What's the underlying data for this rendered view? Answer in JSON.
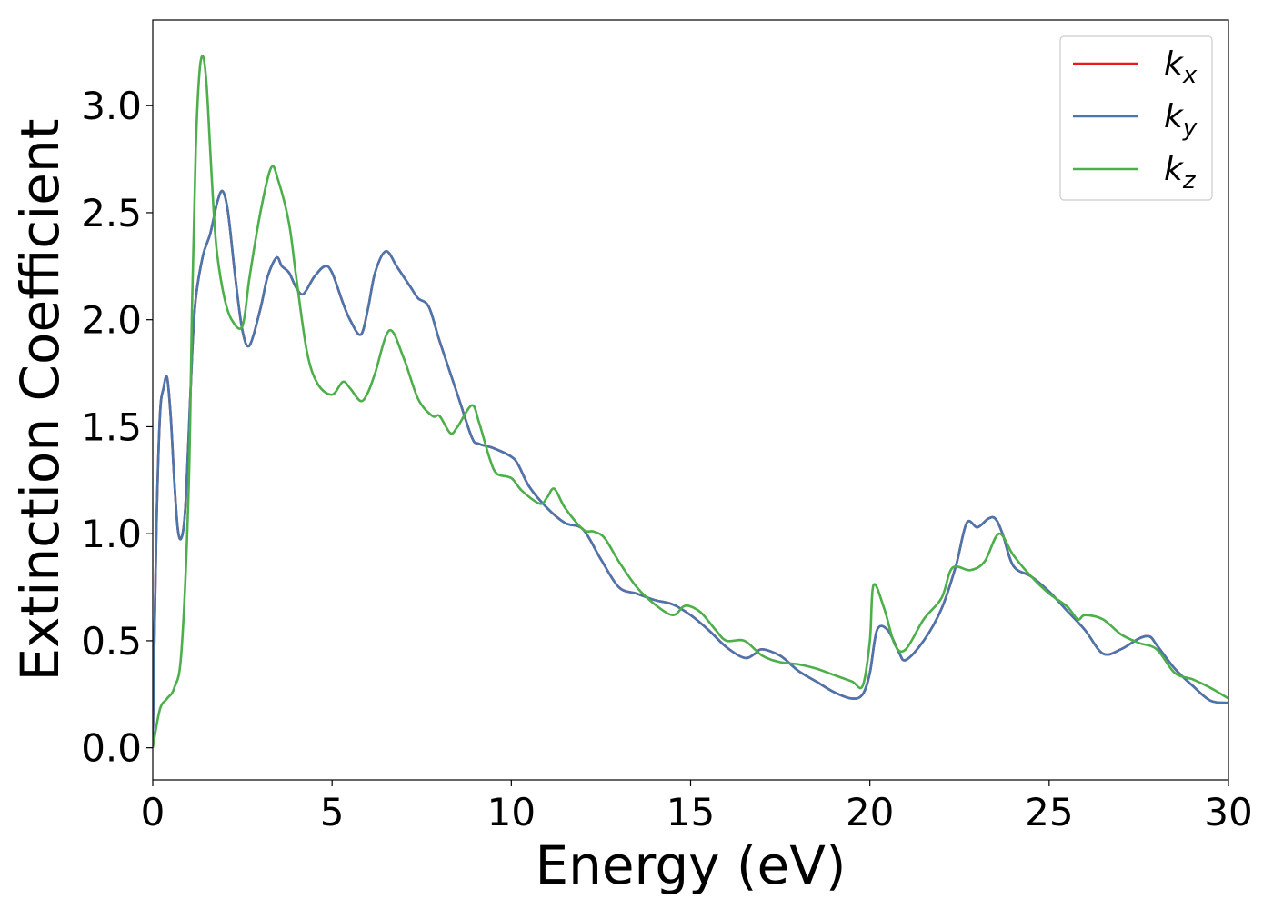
{
  "chart_data": {
    "type": "line",
    "title": "",
    "xlabel": "Energy (eV)",
    "ylabel": "Extinction Coefficient",
    "xlim": [
      0,
      30
    ],
    "ylim": [
      -0.15,
      3.4
    ],
    "xticks": [
      0,
      5,
      10,
      15,
      20,
      25,
      30
    ],
    "xtick_labels": [
      "0",
      "5",
      "10",
      "15",
      "20",
      "25",
      "30"
    ],
    "yticks": [
      0.0,
      0.5,
      1.0,
      1.5,
      2.0,
      2.5,
      3.0
    ],
    "ytick_labels": [
      "0.0",
      "0.5",
      "1.0",
      "1.5",
      "2.0",
      "2.5",
      "3.0"
    ],
    "grid": false,
    "legend_position": "top-right",
    "series": [
      {
        "name": "k",
        "subscript": "x",
        "color": "#e41a1c",
        "x": [
          0,
          0.1,
          0.2,
          0.3,
          0.4,
          0.5,
          0.6,
          0.7,
          0.8,
          0.9,
          1.0,
          1.1,
          1.2,
          1.4,
          1.6,
          1.8,
          1.95,
          2.1,
          2.3,
          2.5,
          2.7,
          3.0,
          3.2,
          3.45,
          3.6,
          3.8,
          4.0,
          4.2,
          4.5,
          4.8,
          5.0,
          5.3,
          5.5,
          5.8,
          6.0,
          6.2,
          6.5,
          6.8,
          7.0,
          7.2,
          7.4,
          7.7,
          8.0,
          8.5,
          8.9,
          9.1,
          9.5,
          10.0,
          10.2,
          10.5,
          11.0,
          11.5,
          12.0,
          12.5,
          13.0,
          13.5,
          14.0,
          14.5,
          15.0,
          15.5,
          16.0,
          16.5,
          16.8,
          17.0,
          17.5,
          18.0,
          18.5,
          19.0,
          19.5,
          19.8,
          20.0,
          20.2,
          20.5,
          20.8,
          21.0,
          21.5,
          22.0,
          22.4,
          22.7,
          23.0,
          23.3,
          23.5,
          23.7,
          24.0,
          24.5,
          25.0,
          25.5,
          26.0,
          26.5,
          27.0,
          27.5,
          27.8,
          28.0,
          28.5,
          29.0,
          29.5,
          30.0
        ],
        "y": [
          0.02,
          1.0,
          1.55,
          1.68,
          1.73,
          1.55,
          1.25,
          1.02,
          0.98,
          1.1,
          1.45,
          1.85,
          2.1,
          2.3,
          2.4,
          2.55,
          2.6,
          2.5,
          2.2,
          1.95,
          1.88,
          2.05,
          2.2,
          2.29,
          2.25,
          2.22,
          2.15,
          2.12,
          2.2,
          2.25,
          2.22,
          2.08,
          2.0,
          1.93,
          2.05,
          2.22,
          2.32,
          2.25,
          2.2,
          2.15,
          2.1,
          2.06,
          1.9,
          1.65,
          1.45,
          1.42,
          1.4,
          1.36,
          1.32,
          1.22,
          1.12,
          1.05,
          1.02,
          0.88,
          0.75,
          0.72,
          0.69,
          0.67,
          0.62,
          0.55,
          0.47,
          0.42,
          0.44,
          0.46,
          0.43,
          0.36,
          0.31,
          0.26,
          0.23,
          0.25,
          0.35,
          0.55,
          0.55,
          0.45,
          0.41,
          0.5,
          0.65,
          0.85,
          1.05,
          1.03,
          1.07,
          1.07,
          1.0,
          0.85,
          0.8,
          0.73,
          0.64,
          0.55,
          0.44,
          0.46,
          0.51,
          0.52,
          0.48,
          0.37,
          0.29,
          0.22,
          0.21
        ]
      },
      {
        "name": "k",
        "subscript": "y",
        "color": "#4a75ad",
        "x": [
          0,
          0.1,
          0.2,
          0.3,
          0.4,
          0.5,
          0.6,
          0.7,
          0.8,
          0.9,
          1.0,
          1.1,
          1.2,
          1.4,
          1.6,
          1.8,
          1.95,
          2.1,
          2.3,
          2.5,
          2.7,
          3.0,
          3.2,
          3.45,
          3.6,
          3.8,
          4.0,
          4.2,
          4.5,
          4.8,
          5.0,
          5.3,
          5.5,
          5.8,
          6.0,
          6.2,
          6.5,
          6.8,
          7.0,
          7.2,
          7.4,
          7.7,
          8.0,
          8.5,
          8.9,
          9.1,
          9.5,
          10.0,
          10.2,
          10.5,
          11.0,
          11.5,
          12.0,
          12.5,
          13.0,
          13.5,
          14.0,
          14.5,
          15.0,
          15.5,
          16.0,
          16.5,
          16.8,
          17.0,
          17.5,
          18.0,
          18.5,
          19.0,
          19.5,
          19.8,
          20.0,
          20.2,
          20.5,
          20.8,
          21.0,
          21.5,
          22.0,
          22.4,
          22.7,
          23.0,
          23.3,
          23.5,
          23.7,
          24.0,
          24.5,
          25.0,
          25.5,
          26.0,
          26.5,
          27.0,
          27.5,
          27.8,
          28.0,
          28.5,
          29.0,
          29.5,
          30.0
        ],
        "y": [
          0.02,
          1.0,
          1.55,
          1.68,
          1.73,
          1.55,
          1.25,
          1.02,
          0.98,
          1.1,
          1.45,
          1.85,
          2.1,
          2.3,
          2.4,
          2.55,
          2.6,
          2.5,
          2.2,
          1.95,
          1.88,
          2.05,
          2.2,
          2.29,
          2.25,
          2.22,
          2.15,
          2.12,
          2.2,
          2.25,
          2.22,
          2.08,
          2.0,
          1.93,
          2.05,
          2.22,
          2.32,
          2.25,
          2.2,
          2.15,
          2.1,
          2.06,
          1.9,
          1.65,
          1.45,
          1.42,
          1.4,
          1.36,
          1.32,
          1.22,
          1.12,
          1.05,
          1.02,
          0.88,
          0.75,
          0.72,
          0.69,
          0.67,
          0.62,
          0.55,
          0.47,
          0.42,
          0.44,
          0.46,
          0.43,
          0.36,
          0.31,
          0.26,
          0.23,
          0.25,
          0.35,
          0.55,
          0.55,
          0.45,
          0.41,
          0.5,
          0.65,
          0.85,
          1.05,
          1.03,
          1.07,
          1.07,
          1.0,
          0.85,
          0.8,
          0.73,
          0.64,
          0.55,
          0.44,
          0.46,
          0.51,
          0.52,
          0.48,
          0.37,
          0.29,
          0.22,
          0.21
        ]
      },
      {
        "name": "k",
        "subscript": "z",
        "color": "#4daf4a",
        "x": [
          0,
          0.2,
          0.4,
          0.6,
          0.8,
          1.0,
          1.1,
          1.2,
          1.3,
          1.4,
          1.5,
          1.6,
          1.7,
          1.8,
          2.0,
          2.2,
          2.5,
          2.7,
          3.0,
          3.3,
          3.5,
          3.8,
          4.0,
          4.3,
          4.6,
          5.0,
          5.3,
          5.5,
          5.8,
          6.0,
          6.2,
          6.6,
          7.0,
          7.4,
          7.8,
          8.0,
          8.3,
          8.5,
          8.9,
          9.1,
          9.4,
          9.6,
          10.0,
          10.3,
          10.8,
          11.0,
          11.2,
          11.5,
          12.0,
          12.3,
          12.6,
          13.0,
          13.5,
          14.0,
          14.5,
          14.8,
          15.0,
          15.3,
          15.7,
          16.0,
          16.5,
          17.0,
          17.5,
          18.0,
          18.5,
          19.0,
          19.5,
          19.8,
          20.0,
          20.1,
          20.4,
          20.7,
          21.0,
          21.5,
          22.0,
          22.3,
          22.8,
          23.2,
          23.6,
          24.0,
          24.5,
          25.0,
          25.5,
          25.8,
          26.0,
          26.5,
          27.0,
          27.5,
          28.0,
          28.5,
          29.0,
          29.5,
          30.0
        ],
        "y": [
          0.0,
          0.18,
          0.23,
          0.28,
          0.45,
          1.2,
          2.1,
          2.8,
          3.15,
          3.23,
          3.1,
          2.8,
          2.5,
          2.3,
          2.1,
          2.0,
          1.97,
          2.2,
          2.5,
          2.71,
          2.65,
          2.45,
          2.2,
          1.85,
          1.7,
          1.65,
          1.71,
          1.68,
          1.62,
          1.66,
          1.75,
          1.95,
          1.82,
          1.63,
          1.55,
          1.55,
          1.47,
          1.5,
          1.6,
          1.52,
          1.35,
          1.28,
          1.26,
          1.2,
          1.14,
          1.17,
          1.21,
          1.12,
          1.02,
          1.01,
          0.98,
          0.87,
          0.75,
          0.67,
          0.62,
          0.66,
          0.66,
          0.63,
          0.55,
          0.5,
          0.5,
          0.43,
          0.4,
          0.39,
          0.37,
          0.34,
          0.31,
          0.29,
          0.5,
          0.76,
          0.65,
          0.48,
          0.46,
          0.6,
          0.7,
          0.84,
          0.83,
          0.87,
          1.0,
          0.9,
          0.8,
          0.72,
          0.66,
          0.6,
          0.62,
          0.6,
          0.53,
          0.49,
          0.46,
          0.35,
          0.32,
          0.28,
          0.23
        ]
      }
    ]
  }
}
